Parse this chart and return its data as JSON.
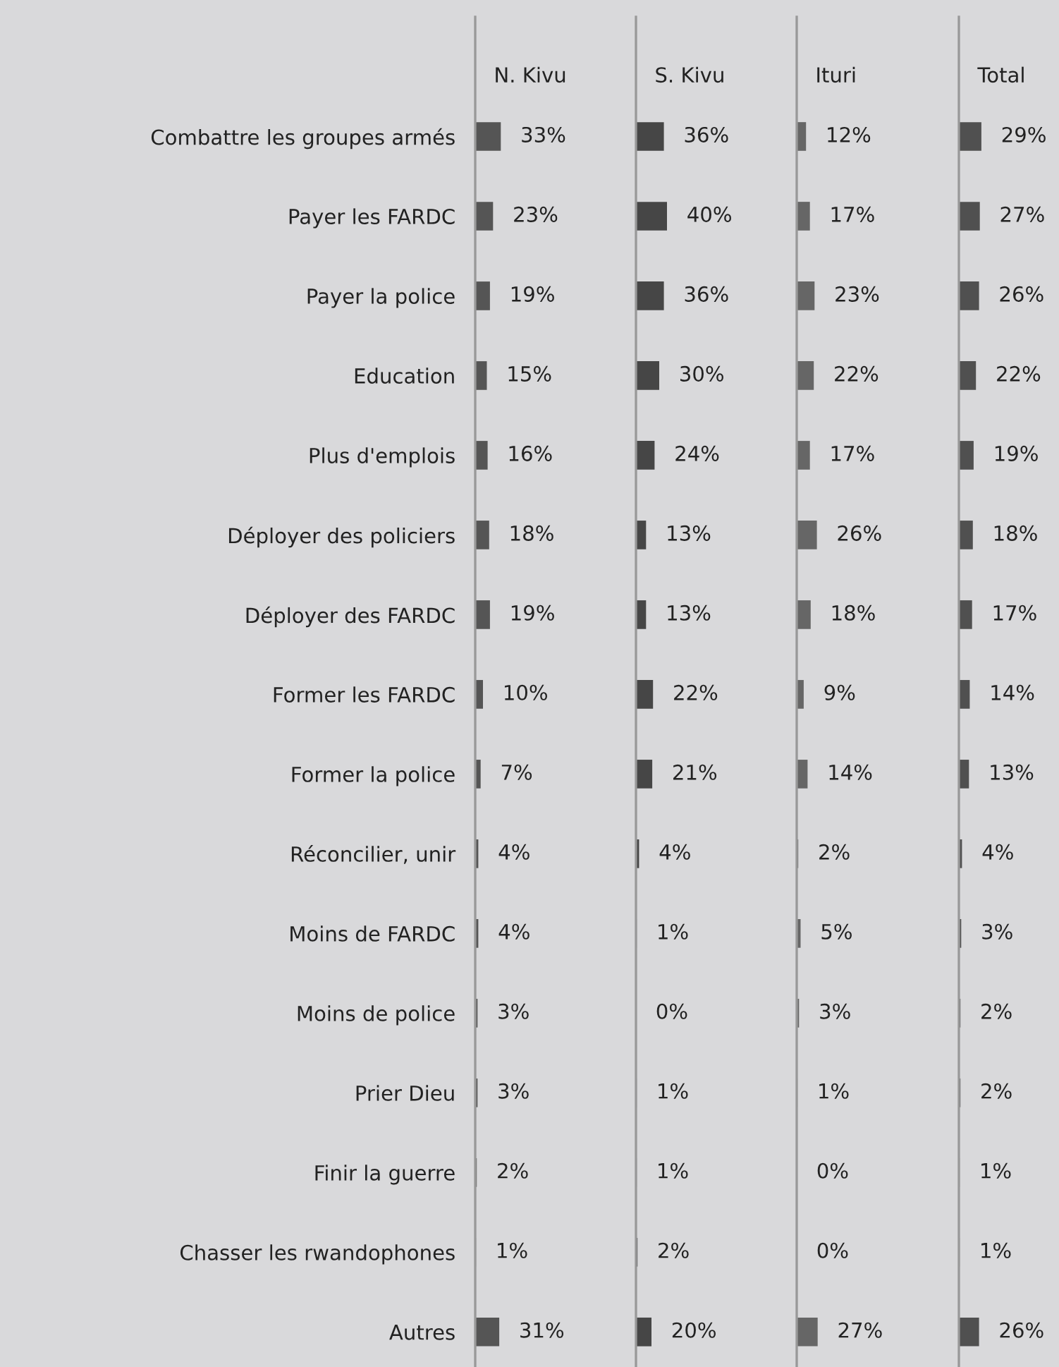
{
  "chart_data": [
    {
      "type": "bar",
      "orientation": "horizontal",
      "title": "N. Kivu",
      "categories": [
        "Combattre les groupes armés",
        "Payer les FARDC",
        "Payer la police",
        "Education",
        "Plus d'emplois",
        "Déployer des policiers",
        "Déployer des FARDC",
        "Former les FARDC",
        "Former la police",
        "Réconcilier, unir",
        "Moins de FARDC",
        "Moins de police",
        "Prier Dieu",
        "Finir la guerre",
        "Chasser les rwandophones",
        "Autres"
      ],
      "values": [
        33,
        23,
        19,
        15,
        16,
        18,
        19,
        10,
        7,
        4,
        4,
        3,
        3,
        2,
        1,
        31
      ],
      "value_labels": [
        "33%",
        "23%",
        "19%",
        "15%",
        "16%",
        "18%",
        "19%",
        "10%",
        "7%",
        "4%",
        "4%",
        "3%",
        "3%",
        "2%",
        "1%",
        "31%"
      ],
      "color": "#555555",
      "tick_labels": "y"
    },
    {
      "type": "bar",
      "orientation": "horizontal",
      "title": "S. Kivu",
      "categories": [
        null,
        null,
        null,
        null,
        null,
        null,
        null,
        null,
        null,
        null,
        null,
        null,
        null,
        null,
        null,
        null
      ],
      "values": [
        36,
        40,
        36,
        30,
        24,
        13,
        13,
        22,
        21,
        4,
        1,
        0,
        1,
        1,
        2,
        20
      ],
      "value_labels": [
        "36%",
        "40%",
        "36%",
        "30%",
        "24%",
        "13%",
        "13%",
        "22%",
        "21%",
        "4%",
        "1%",
        "0%",
        "1%",
        "1%",
        "2%",
        "20%"
      ],
      "color": "#464646",
      "tick_labels": false
    },
    {
      "type": "bar",
      "orientation": "horizontal",
      "title": "Ituri",
      "categories": [
        null,
        null,
        null,
        null,
        null,
        null,
        null,
        null,
        null,
        null,
        null,
        null,
        null,
        null,
        null,
        null
      ],
      "values": [
        12,
        17,
        23,
        22,
        17,
        26,
        18,
        9,
        14,
        2,
        5,
        3,
        1,
        0,
        0,
        27
      ],
      "value_labels": [
        "12%",
        "17%",
        "23%",
        "22%",
        "17%",
        "26%",
        "18%",
        "9%",
        "14%",
        "2%",
        "5%",
        "3%",
        "1%",
        "0%",
        "0%",
        "27%"
      ],
      "color": "#666666",
      "tick_labels": false
    },
    {
      "type": "bar",
      "orientation": "horizontal",
      "title": "Total",
      "categories": [
        null,
        null,
        null,
        null,
        null,
        null,
        null,
        null,
        null,
        null,
        null,
        null,
        null,
        null,
        null,
        null
      ],
      "values": [
        29,
        27,
        26,
        22,
        19,
        18,
        17,
        14,
        13,
        4,
        3,
        2,
        2,
        1,
        1,
        26
      ],
      "value_labels": [
        "29%",
        "27%",
        "26%",
        "22%",
        "19%",
        "18%",
        "17%",
        "14%",
        "13%",
        "4%",
        "3%",
        "2%",
        "2%",
        "1%",
        "1%",
        "26%"
      ],
      "color": "#505050",
      "tick_labels": false
    }
  ]
}
